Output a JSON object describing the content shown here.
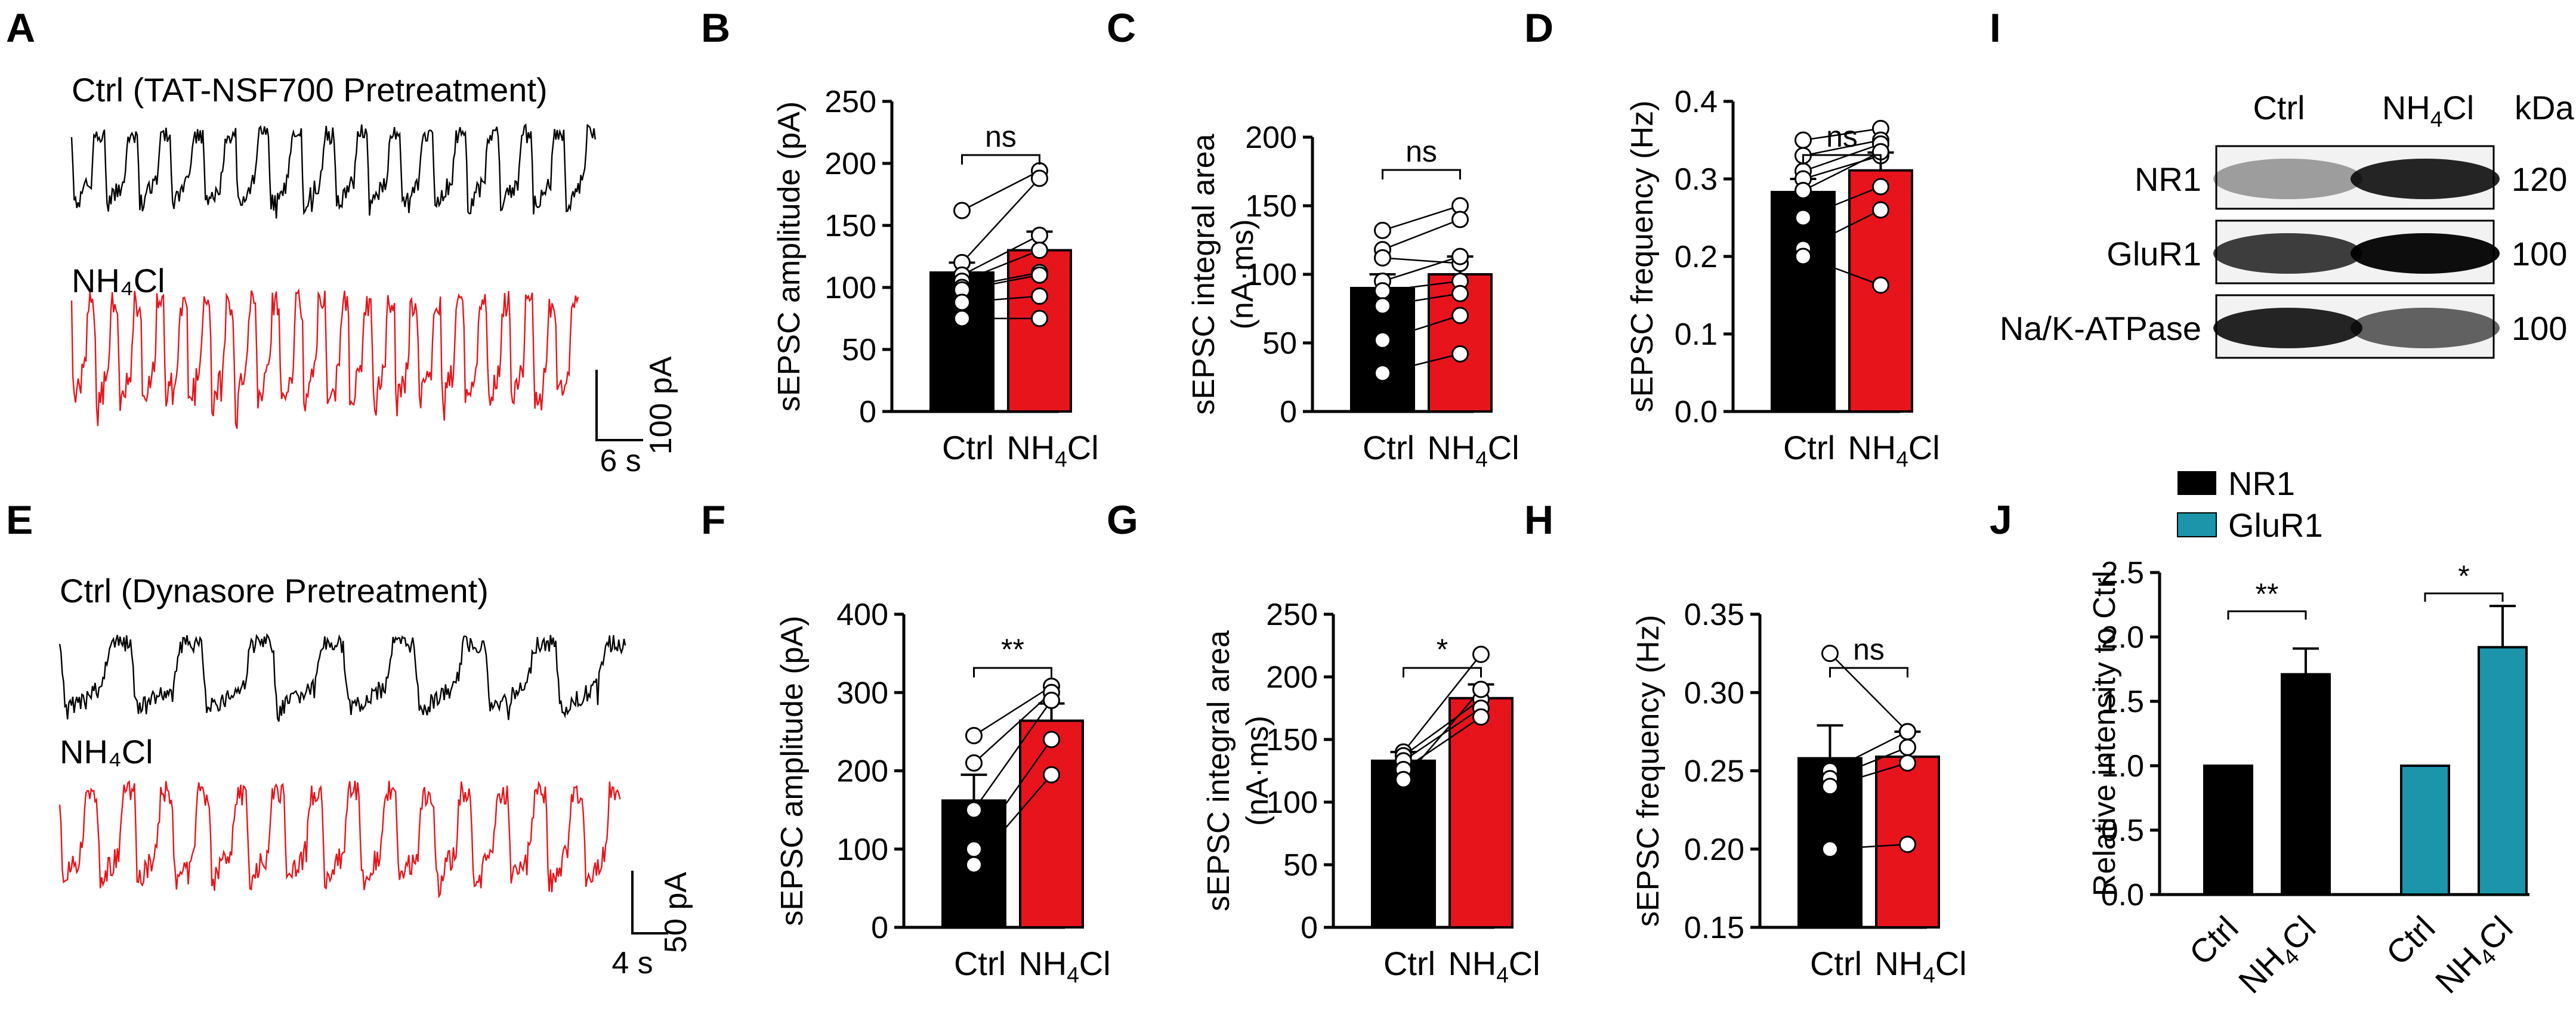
{
  "figure": {
    "panel_labels": [
      "A",
      "B",
      "C",
      "D",
      "E",
      "F",
      "G",
      "H",
      "I",
      "J"
    ],
    "trace_panels": [
      {
        "label": "A",
        "ctrl_title": "Ctrl (TAT-NSF700 Pretreatment)",
        "nh4_title": "NH₄Cl",
        "time_scale": "6 s",
        "amp_scale": "100 pA",
        "ctrl_events": 16,
        "nh4_events": 22,
        "ctrl_color": "#000000",
        "nh4_color": "#e8141b"
      },
      {
        "label": "E",
        "ctrl_title": "Ctrl (Dynasore Pretreatment)",
        "nh4_title": "NH₄Cl",
        "time_scale": "4 s",
        "amp_scale": "50 pA",
        "ctrl_events": 8,
        "nh4_events": 15,
        "ctrl_color": "#000000",
        "nh4_color": "#e8141b"
      }
    ],
    "blot": {
      "label": "I",
      "columns": [
        "Ctrl",
        "NH₄Cl"
      ],
      "unit": "kDa",
      "rows": [
        {
          "name": "NR1",
          "kda": "120"
        },
        {
          "name": "GluR1",
          "kda": "100"
        },
        {
          "name": "Na/K-ATPase",
          "kda": "100"
        }
      ]
    }
  },
  "chart_data": [
    {
      "panel": "B",
      "type": "bar",
      "categories": [
        "Ctrl",
        "NH4Cl"
      ],
      "values": [
        112,
        130
      ],
      "sem": [
        8,
        15
      ],
      "ylabel": "sEPSC amplitude (pA)",
      "ylim": [
        0,
        250
      ],
      "yticks": [
        "0",
        "50",
        "100",
        "150",
        "200",
        "250"
      ],
      "pairs": [
        [
          162,
          194
        ],
        [
          120,
          188
        ],
        [
          110,
          142
        ],
        [
          105,
          130
        ],
        [
          100,
          112
        ],
        [
          98,
          110
        ],
        [
          88,
          93
        ],
        [
          75,
          75
        ]
      ],
      "significance": "ns",
      "colors": [
        "#000000",
        "#e8141b"
      ]
    },
    {
      "panel": "C",
      "type": "bar",
      "categories": [
        "Ctrl",
        "NH4Cl"
      ],
      "values": [
        90,
        100
      ],
      "sem": [
        10,
        13
      ],
      "ylabel_lines": [
        "sEPSC integral area",
        "(nA·ms)"
      ],
      "ylim": [
        0,
        200
      ],
      "yticks": [
        "0",
        "50",
        "100",
        "150",
        "200"
      ],
      "pairs": [
        [
          132,
          150
        ],
        [
          118,
          140
        ],
        [
          112,
          108
        ],
        [
          95,
          113
        ],
        [
          88,
          95
        ],
        [
          77,
          86
        ],
        [
          52,
          70
        ],
        [
          28,
          42
        ]
      ],
      "significance": "ns",
      "colors": [
        "#000000",
        "#e8141b"
      ]
    },
    {
      "panel": "D",
      "type": "bar",
      "categories": [
        "Ctrl",
        "NH4Cl"
      ],
      "values": [
        0.283,
        0.311
      ],
      "sem": [
        0.017,
        0.023
      ],
      "ylabel": "sEPSC frequency (Hz)",
      "ylim": [
        0,
        0.4
      ],
      "yticks": [
        "0.0",
        "0.1",
        "0.2",
        "0.3",
        "0.4"
      ],
      "pairs": [
        [
          0.35,
          0.365
        ],
        [
          0.33,
          0.35
        ],
        [
          0.31,
          0.345
        ],
        [
          0.3,
          0.33
        ],
        [
          0.285,
          0.335
        ],
        [
          0.25,
          0.29
        ],
        [
          0.21,
          0.26
        ],
        [
          0.2,
          0.163
        ]
      ],
      "significance": "ns",
      "colors": [
        "#000000",
        "#e8141b"
      ]
    },
    {
      "panel": "F",
      "type": "bar",
      "categories": [
        "Ctrl",
        "NH4Cl"
      ],
      "values": [
        162,
        264
      ],
      "sem": [
        33,
        22
      ],
      "ylabel": "sEPSC amplitude (pA)",
      "ylim": [
        0,
        400
      ],
      "yticks": [
        "0",
        "100",
        "200",
        "300",
        "400"
      ],
      "pairs": [
        [
          245,
          308
        ],
        [
          210,
          300
        ],
        [
          150,
          290
        ],
        [
          100,
          240
        ],
        [
          80,
          195
        ]
      ],
      "significance": "**",
      "colors": [
        "#000000",
        "#e8141b"
      ]
    },
    {
      "panel": "G",
      "type": "bar",
      "categories": [
        "Ctrl",
        "NH4Cl"
      ],
      "values": [
        133,
        183
      ],
      "sem": [
        7,
        11
      ],
      "ylabel_lines": [
        "sEPSC integral area",
        "(nA·ms)"
      ],
      "ylim": [
        0,
        250
      ],
      "yticks": [
        "0",
        "50",
        "100",
        "150",
        "200",
        "250"
      ],
      "pairs": [
        [
          140,
          218
        ],
        [
          137,
          182
        ],
        [
          133,
          175
        ],
        [
          126,
          168
        ],
        [
          118,
          190
        ]
      ],
      "significance": "*",
      "colors": [
        "#000000",
        "#e8141b"
      ]
    },
    {
      "panel": "H",
      "type": "bar",
      "categories": [
        "Ctrl",
        "NH4Cl"
      ],
      "values": [
        0.258,
        0.259
      ],
      "sem": [
        0.021,
        0.016
      ],
      "ylabel": "sEPSC frequency (Hz)",
      "ylim": [
        0.15,
        0.35
      ],
      "yticks": [
        "0.15",
        "0.20",
        "0.25",
        "0.30",
        "0.35"
      ],
      "pairs": [
        [
          0.325,
          0.275
        ],
        [
          0.25,
          0.275
        ],
        [
          0.245,
          0.265
        ],
        [
          0.24,
          0.255
        ],
        [
          0.2,
          0.203
        ]
      ],
      "significance": "ns",
      "colors": [
        "#000000",
        "#e8141b"
      ]
    },
    {
      "panel": "J",
      "type": "bar",
      "groups": [
        "NR1",
        "GluR1"
      ],
      "categories": [
        "Ctrl",
        "NH4Cl",
        "Ctrl",
        "NH4Cl"
      ],
      "values": [
        1.0,
        1.71,
        1.0,
        1.92
      ],
      "sem": [
        0,
        0.2,
        0,
        0.32
      ],
      "ylabel": "Relative intensity to Ctrl",
      "ylim": [
        0,
        2.5
      ],
      "yticks": [
        "0.0",
        "0.5",
        "1.0",
        "1.5",
        "2.0",
        "2.5"
      ],
      "legend": [
        "NR1",
        "GluR1"
      ],
      "significance": [
        "**",
        "*"
      ],
      "colors": [
        "#000000",
        "#1c95ab"
      ]
    }
  ]
}
